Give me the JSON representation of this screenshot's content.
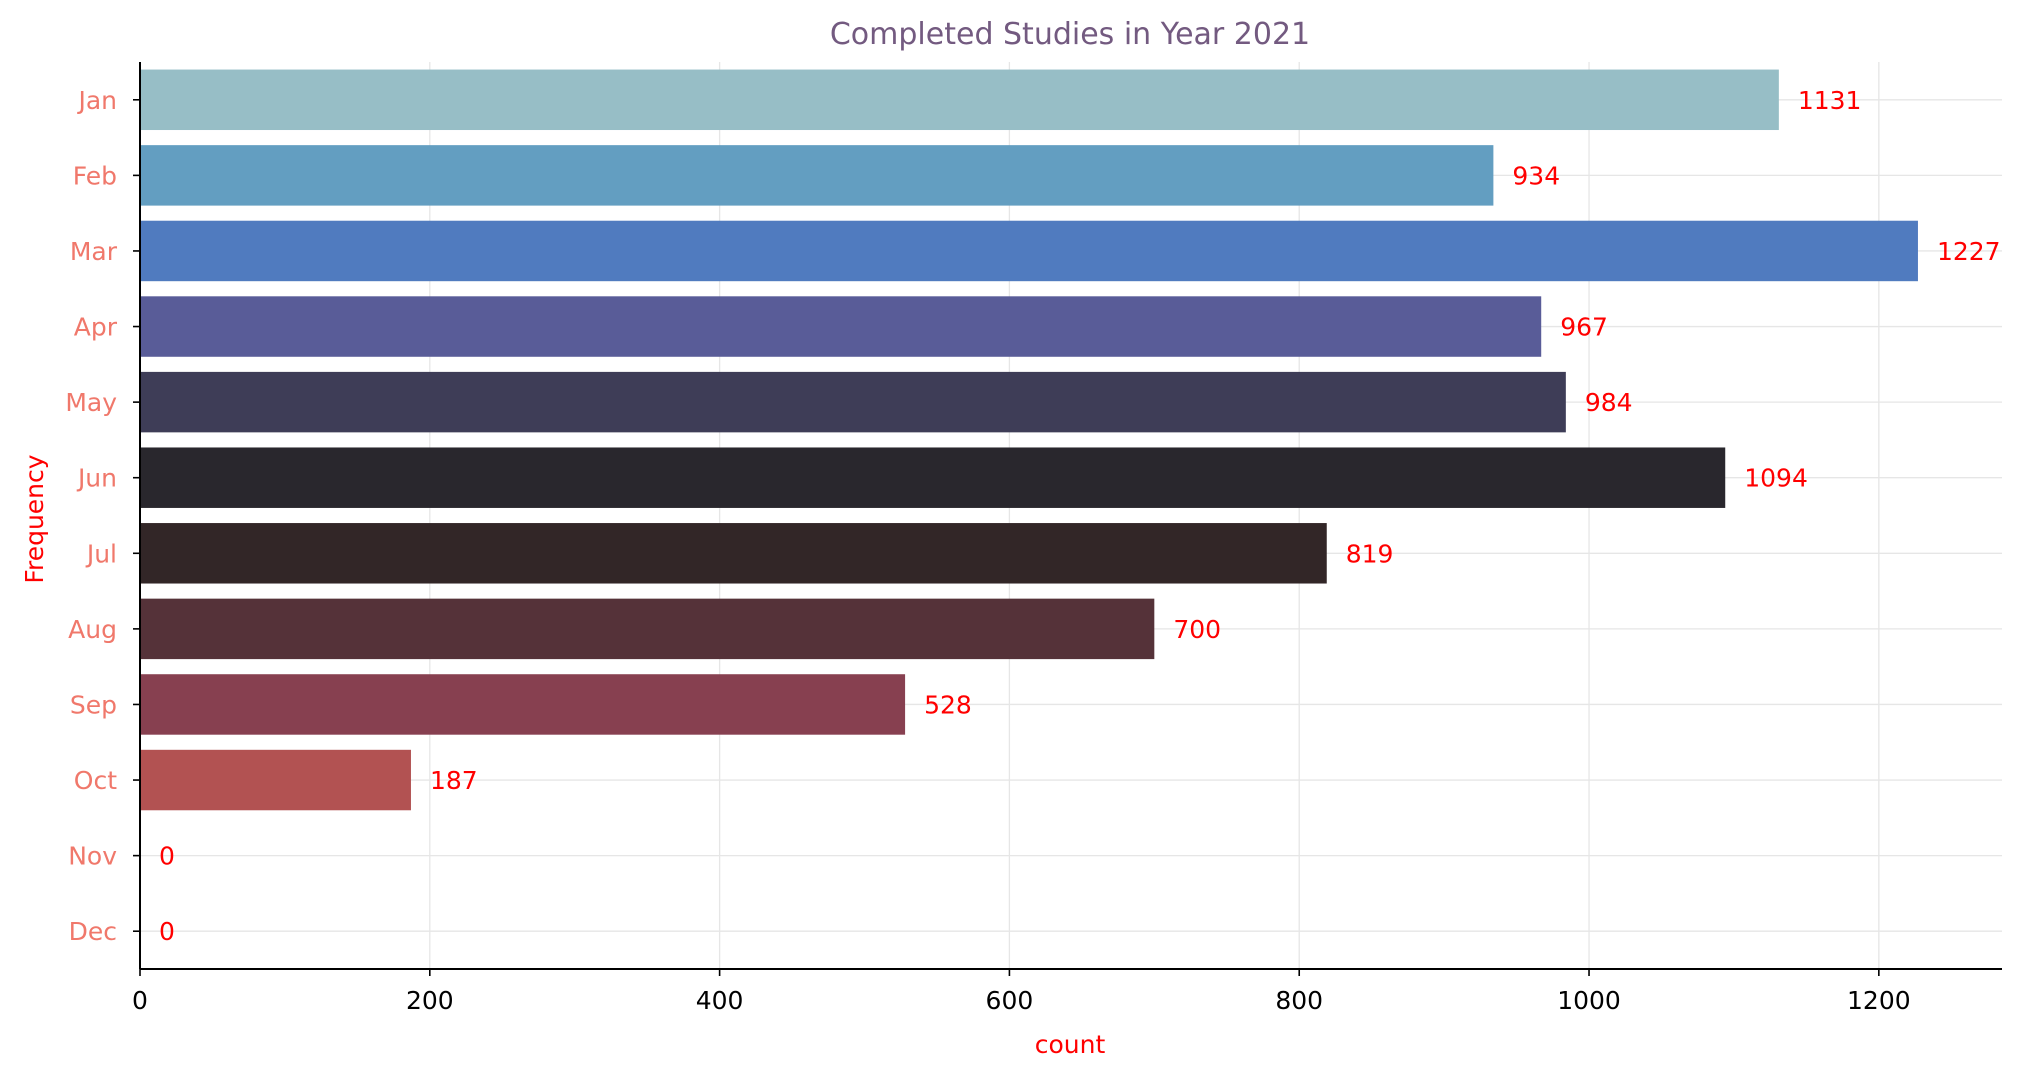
{
  "chart_data": {
    "type": "bar",
    "orientation": "horizontal",
    "title": "Completed Studies in Year 2021",
    "xlabel": "count",
    "ylabel": "Frequency",
    "categories": [
      "Jan",
      "Feb",
      "Mar",
      "Apr",
      "May",
      "Jun",
      "Jul",
      "Aug",
      "Sep",
      "Oct",
      "Nov",
      "Dec"
    ],
    "values": [
      1131,
      934,
      1227,
      967,
      984,
      1094,
      819,
      700,
      528,
      187,
      0,
      0
    ],
    "data_labels": [
      "1131",
      "934",
      "1227",
      "967",
      "984",
      "1094",
      "819",
      "700",
      "528",
      "187",
      "0",
      "0"
    ],
    "xlim": [
      0,
      1285
    ],
    "xticks": [
      0,
      200,
      400,
      600,
      800,
      1000,
      1200
    ],
    "xtick_labels": [
      "0",
      "200",
      "400",
      "600",
      "800",
      "1000",
      "1200"
    ],
    "grid": true,
    "colors": {
      "bars": [
        "#94bcc4",
        "#5e9bbf",
        "#4a77bd",
        "#545795",
        "#383752",
        "#222026",
        "#2b1f20",
        "#4f2b33",
        "#833a4a",
        "#b04c4c",
        "#d0555a",
        "#d96a5f"
      ],
      "title": "#735a80",
      "category_ticks": "#f0786b",
      "axis_labels": "#ff0000",
      "data_labels": "#ff0000",
      "grid": "#e6e6e6",
      "axis": "#000000"
    }
  }
}
